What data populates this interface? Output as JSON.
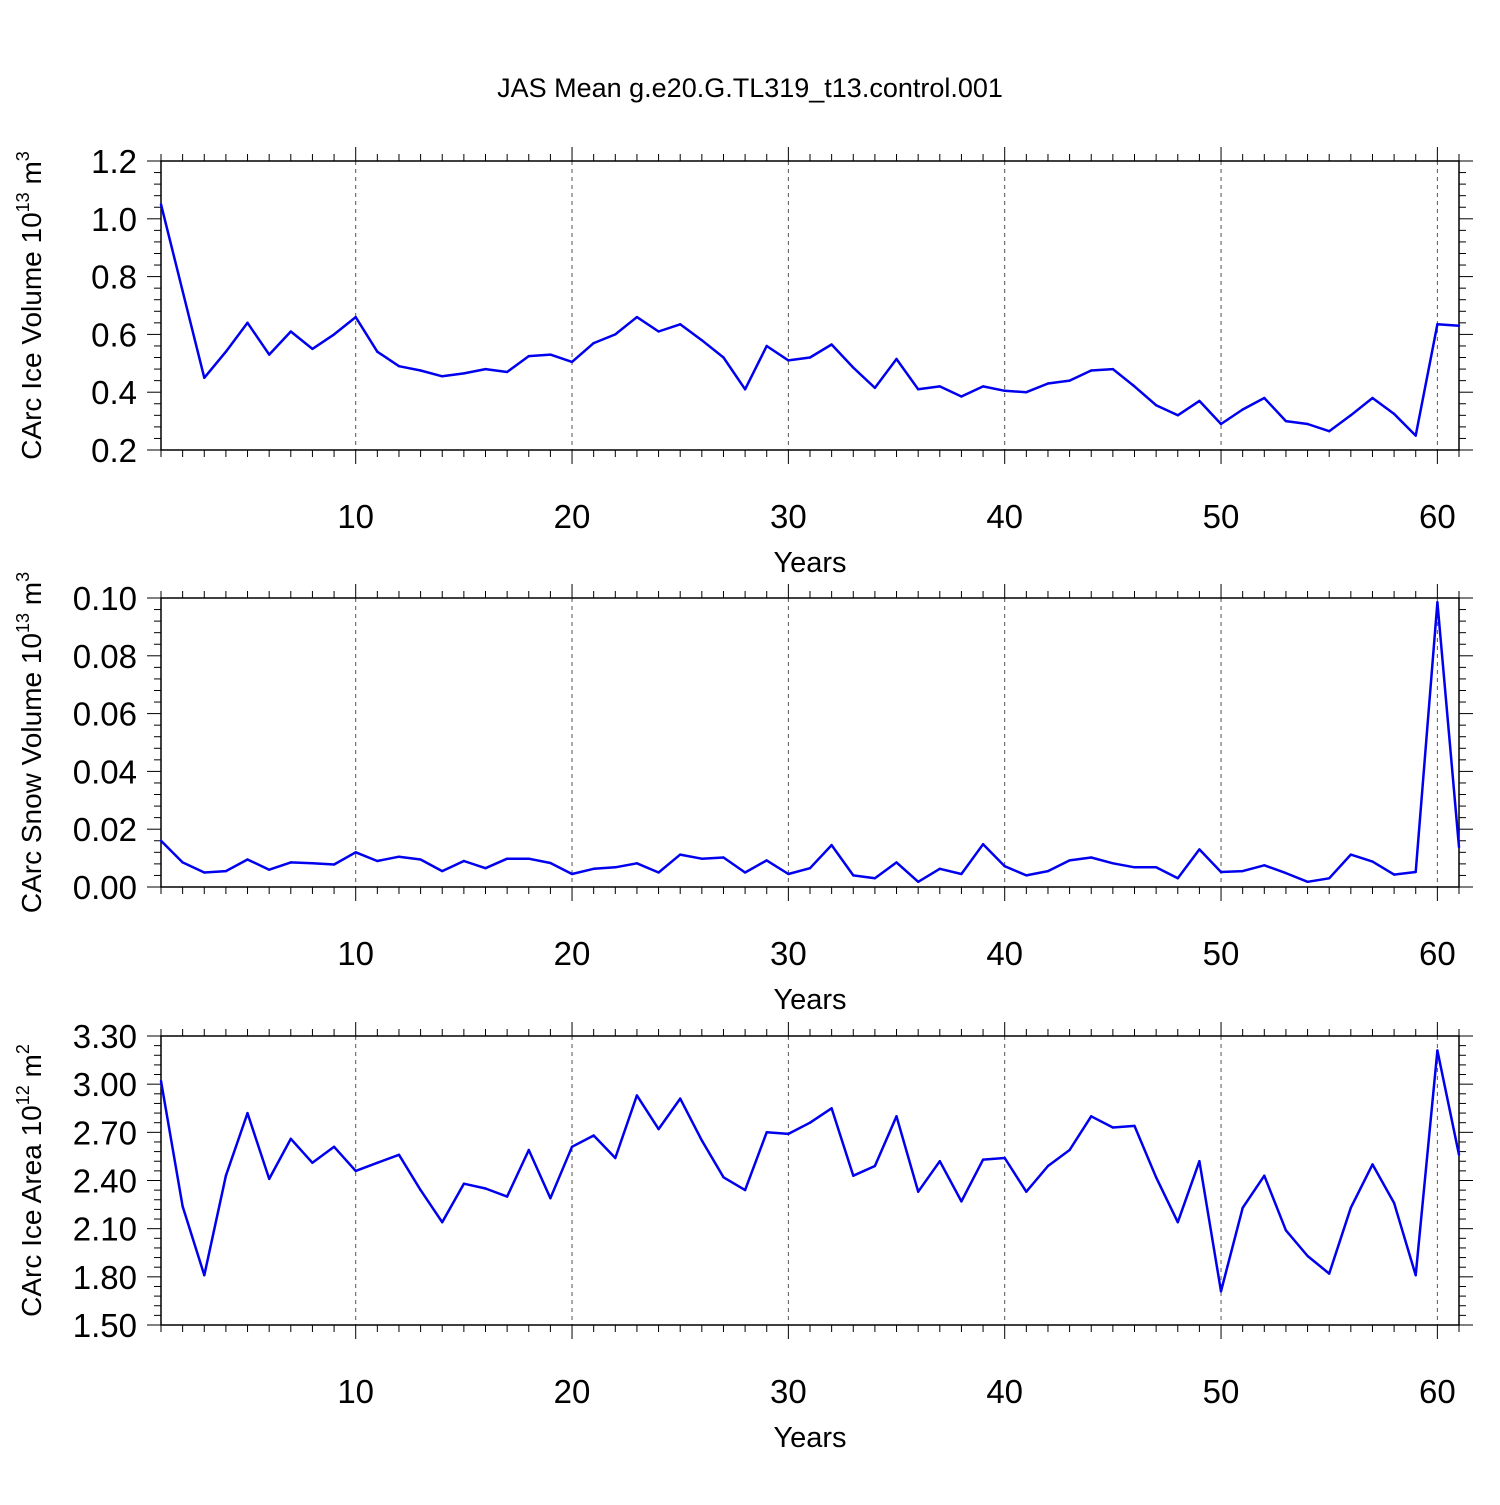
{
  "title": "JAS Mean g.e20.G.TL319_t13.control.001",
  "line_color": "#0000ee",
  "chart_data": [
    {
      "type": "line",
      "title": "",
      "xlabel": "Years",
      "ylabel": "CArc Ice Volume 10",
      "ylabel_exp": "13",
      "ylabel_unit": " m",
      "ylabel_unit_exp": "3",
      "xlim": [
        1,
        61
      ],
      "ylim": [
        0.2,
        1.2
      ],
      "xticks": [
        10,
        20,
        30,
        40,
        50,
        60
      ],
      "yticks": [
        "0.2",
        "0.4",
        "0.6",
        "0.8",
        "1.0",
        "1.2"
      ],
      "grid_x": true,
      "x": [
        1,
        2,
        3,
        4,
        5,
        6,
        7,
        8,
        9,
        10,
        11,
        12,
        13,
        14,
        15,
        16,
        17,
        18,
        19,
        20,
        21,
        22,
        23,
        24,
        25,
        26,
        27,
        28,
        29,
        30,
        31,
        32,
        33,
        34,
        35,
        36,
        37,
        38,
        39,
        40,
        41,
        42,
        43,
        44,
        45,
        46,
        47,
        48,
        49,
        50,
        51,
        52,
        53,
        54,
        55,
        56,
        57,
        58,
        59,
        60,
        61
      ],
      "y": [
        1.05,
        0.75,
        0.45,
        0.54,
        0.64,
        0.53,
        0.61,
        0.55,
        0.6,
        0.66,
        0.54,
        0.49,
        0.475,
        0.455,
        0.465,
        0.48,
        0.47,
        0.525,
        0.53,
        0.505,
        0.57,
        0.6,
        0.66,
        0.61,
        0.635,
        0.58,
        0.52,
        0.41,
        0.56,
        0.51,
        0.52,
        0.565,
        0.485,
        0.415,
        0.515,
        0.41,
        0.42,
        0.385,
        0.42,
        0.405,
        0.4,
        0.43,
        0.44,
        0.475,
        0.48,
        0.42,
        0.355,
        0.32,
        0.37,
        0.29,
        0.34,
        0.38,
        0.3,
        0.29,
        0.265,
        0.32,
        0.38,
        0.325,
        0.25,
        0.635,
        0.63
      ]
    },
    {
      "type": "line",
      "title": "",
      "xlabel": "Years",
      "ylabel": "CArc Snow Volume 10",
      "ylabel_exp": "13",
      "ylabel_unit": " m",
      "ylabel_unit_exp": "3",
      "xlim": [
        1,
        61
      ],
      "ylim": [
        0.0,
        0.1
      ],
      "xticks": [
        10,
        20,
        30,
        40,
        50,
        60
      ],
      "yticks": [
        "0.00",
        "0.02",
        "0.04",
        "0.06",
        "0.08",
        "0.10"
      ],
      "grid_x": true,
      "x": [
        1,
        2,
        3,
        4,
        5,
        6,
        7,
        8,
        9,
        10,
        11,
        12,
        13,
        14,
        15,
        16,
        17,
        18,
        19,
        20,
        21,
        22,
        23,
        24,
        25,
        26,
        27,
        28,
        29,
        30,
        31,
        32,
        33,
        34,
        35,
        36,
        37,
        38,
        39,
        40,
        41,
        42,
        43,
        44,
        45,
        46,
        47,
        48,
        49,
        50,
        51,
        52,
        53,
        54,
        55,
        56,
        57,
        58,
        59,
        60,
        61
      ],
      "y": [
        0.016,
        0.0085,
        0.005,
        0.0055,
        0.0095,
        0.006,
        0.0085,
        0.0082,
        0.0078,
        0.012,
        0.009,
        0.0105,
        0.0095,
        0.0055,
        0.009,
        0.0065,
        0.0098,
        0.0098,
        0.0083,
        0.0045,
        0.0063,
        0.0068,
        0.0082,
        0.005,
        0.0112,
        0.0098,
        0.0102,
        0.005,
        0.0092,
        0.0045,
        0.0065,
        0.0145,
        0.004,
        0.003,
        0.0085,
        0.0018,
        0.0063,
        0.0045,
        0.0148,
        0.0072,
        0.004,
        0.0055,
        0.0092,
        0.0102,
        0.0082,
        0.0068,
        0.0068,
        0.003,
        0.013,
        0.0052,
        0.0055,
        0.0075,
        0.0048,
        0.0018,
        0.003,
        0.0112,
        0.0088,
        0.0043,
        0.0052,
        0.0985,
        0.0138
      ]
    },
    {
      "type": "line",
      "title": "",
      "xlabel": "Years",
      "ylabel": "CArc Ice Area 10",
      "ylabel_exp": "12",
      "ylabel_unit": " m",
      "ylabel_unit_exp": "2",
      "xlim": [
        1,
        61
      ],
      "ylim": [
        1.5,
        3.3
      ],
      "xticks": [
        10,
        20,
        30,
        40,
        50,
        60
      ],
      "yticks": [
        "1.50",
        "1.80",
        "2.10",
        "2.40",
        "2.70",
        "3.00",
        "3.30"
      ],
      "grid_x": true,
      "x": [
        1,
        2,
        3,
        4,
        5,
        6,
        7,
        8,
        9,
        10,
        11,
        12,
        13,
        14,
        15,
        16,
        17,
        18,
        19,
        20,
        21,
        22,
        23,
        24,
        25,
        26,
        27,
        28,
        29,
        30,
        31,
        32,
        33,
        34,
        35,
        36,
        37,
        38,
        39,
        40,
        41,
        42,
        43,
        44,
        45,
        46,
        47,
        48,
        49,
        50,
        51,
        52,
        53,
        54,
        55,
        56,
        57,
        58,
        59,
        60,
        61
      ],
      "y": [
        3.02,
        2.24,
        1.81,
        2.43,
        2.82,
        2.41,
        2.66,
        2.51,
        2.61,
        2.46,
        2.51,
        2.56,
        2.34,
        2.14,
        2.38,
        2.35,
        2.3,
        2.59,
        2.29,
        2.61,
        2.68,
        2.54,
        2.93,
        2.72,
        2.91,
        2.65,
        2.42,
        2.34,
        2.7,
        2.69,
        2.76,
        2.85,
        2.43,
        2.49,
        2.8,
        2.33,
        2.52,
        2.27,
        2.53,
        2.54,
        2.33,
        2.49,
        2.59,
        2.8,
        2.73,
        2.74,
        2.42,
        2.14,
        2.52,
        1.71,
        2.23,
        2.43,
        2.09,
        1.93,
        1.82,
        2.23,
        2.5,
        2.26,
        1.81,
        3.21,
        2.56
      ]
    }
  ]
}
